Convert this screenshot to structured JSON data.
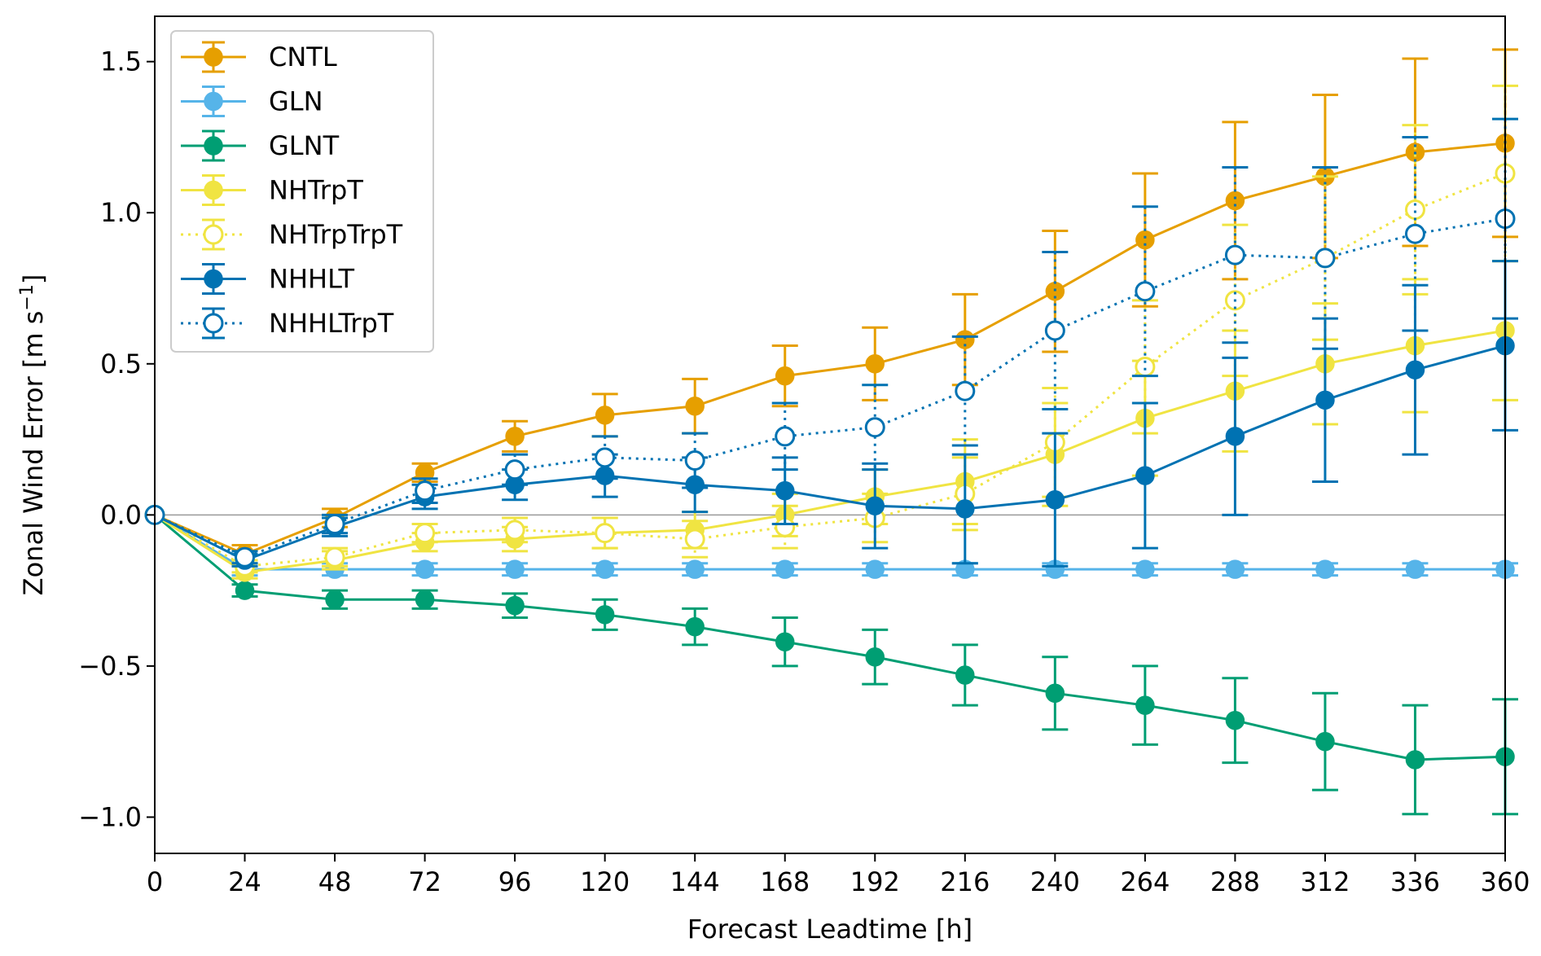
{
  "chart_data": {
    "type": "line",
    "title": "",
    "xlabel": "Forecast Leadtime [h]",
    "ylabel_main": "Zonal Wind Error [m s",
    "ylabel_sup": "−1",
    "ylabel_end": "]",
    "xlim": [
      0,
      360
    ],
    "ylim": [
      -1.12,
      1.65
    ],
    "x": [
      0,
      24,
      48,
      72,
      96,
      120,
      144,
      168,
      192,
      216,
      240,
      264,
      288,
      312,
      336,
      360
    ],
    "x_tick_labels": [
      "0",
      "24",
      "48",
      "72",
      "96",
      "120",
      "144",
      "168",
      "192",
      "216",
      "240",
      "264",
      "288",
      "312",
      "336",
      "360"
    ],
    "y_ticks": [
      1.5,
      1.0,
      0.5,
      0.0,
      -0.5,
      -1.0
    ],
    "y_tick_labels": [
      "1.5",
      "1.0",
      "0.5",
      "0.0",
      "−0.5",
      "−1.0"
    ],
    "zero_line": true,
    "legend_position": "top-left",
    "series": [
      {
        "name": "CNTL",
        "color": "#E69F00",
        "style": "solid",
        "marker": "filled",
        "values": [
          0.0,
          -0.13,
          -0.01,
          0.14,
          0.26,
          0.33,
          0.36,
          0.46,
          0.5,
          0.58,
          0.74,
          0.91,
          1.04,
          1.12,
          1.2,
          1.23
        ],
        "err": [
          0.0,
          0.03,
          0.03,
          0.03,
          0.05,
          0.07,
          0.09,
          0.1,
          0.12,
          0.15,
          0.2,
          0.22,
          0.26,
          0.27,
          0.31,
          0.31
        ]
      },
      {
        "name": "GLN",
        "color": "#56B4E9",
        "style": "solid",
        "marker": "filled",
        "values": [
          0.0,
          -0.18,
          -0.18,
          -0.18,
          -0.18,
          -0.18,
          -0.18,
          -0.18,
          -0.18,
          -0.18,
          -0.18,
          -0.18,
          -0.18,
          -0.18,
          -0.18,
          -0.18
        ],
        "err": [
          0.0,
          0.02,
          0.02,
          0.02,
          0.02,
          0.02,
          0.02,
          0.02,
          0.02,
          0.02,
          0.02,
          0.02,
          0.02,
          0.02,
          0.02,
          0.02
        ]
      },
      {
        "name": "GLNT",
        "color": "#009E73",
        "style": "solid",
        "marker": "filled",
        "values": [
          0.0,
          -0.25,
          -0.28,
          -0.28,
          -0.3,
          -0.33,
          -0.37,
          -0.42,
          -0.47,
          -0.53,
          -0.59,
          -0.63,
          -0.68,
          -0.75,
          -0.81,
          -0.8
        ],
        "err": [
          0.0,
          0.02,
          0.03,
          0.03,
          0.04,
          0.05,
          0.06,
          0.08,
          0.09,
          0.1,
          0.12,
          0.13,
          0.14,
          0.16,
          0.18,
          0.19
        ]
      },
      {
        "name": "NHTrpT",
        "color": "#F0E442",
        "style": "solid",
        "marker": "filled",
        "values": [
          0.0,
          -0.19,
          -0.15,
          -0.09,
          -0.08,
          -0.06,
          -0.05,
          0.0,
          0.06,
          0.11,
          0.2,
          0.32,
          0.41,
          0.5,
          0.56,
          0.61
        ],
        "err": [
          0.0,
          0.02,
          0.03,
          0.03,
          0.04,
          0.05,
          0.06,
          0.07,
          0.09,
          0.14,
          0.17,
          0.19,
          0.2,
          0.2,
          0.22,
          0.23
        ]
      },
      {
        "name": "NHTrpTrpT",
        "color": "#F0E442",
        "style": "dotted",
        "marker": "open",
        "values": [
          0.0,
          -0.17,
          -0.14,
          -0.06,
          -0.05,
          -0.06,
          -0.08,
          -0.04,
          -0.01,
          0.07,
          0.24,
          0.49,
          0.71,
          0.85,
          1.01,
          1.13
        ],
        "err": [
          0.0,
          0.02,
          0.03,
          0.03,
          0.04,
          0.05,
          0.06,
          0.07,
          0.08,
          0.12,
          0.18,
          0.22,
          0.25,
          0.27,
          0.28,
          0.29
        ]
      },
      {
        "name": "NHHLT",
        "color": "#0072B2",
        "style": "solid",
        "marker": "filled",
        "values": [
          0.0,
          -0.15,
          -0.04,
          0.06,
          0.1,
          0.13,
          0.1,
          0.08,
          0.03,
          0.02,
          0.05,
          0.13,
          0.26,
          0.38,
          0.48,
          0.56
        ],
        "err": [
          0.0,
          0.02,
          0.03,
          0.04,
          0.05,
          0.07,
          0.09,
          0.11,
          0.14,
          0.18,
          0.22,
          0.24,
          0.26,
          0.27,
          0.28,
          0.28
        ]
      },
      {
        "name": "NHHLTrpT",
        "color": "#0072B2",
        "style": "dotted",
        "marker": "open",
        "values": [
          0.0,
          -0.14,
          -0.03,
          0.08,
          0.15,
          0.19,
          0.18,
          0.26,
          0.29,
          0.41,
          0.61,
          0.74,
          0.86,
          0.85,
          0.93,
          0.98
        ],
        "err": [
          0.0,
          0.02,
          0.03,
          0.04,
          0.05,
          0.07,
          0.09,
          0.11,
          0.14,
          0.18,
          0.26,
          0.28,
          0.29,
          0.3,
          0.32,
          0.33
        ]
      }
    ]
  }
}
